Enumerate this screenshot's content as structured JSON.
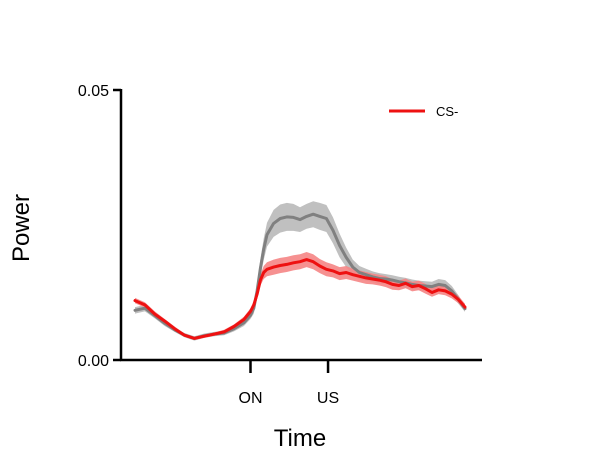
{
  "chart_data": {
    "type": "line",
    "title": "",
    "xlabel": "Time",
    "ylabel": "Power",
    "ylim": [
      0,
      0.05
    ],
    "xlim": [
      0,
      100
    ],
    "yticks": [
      {
        "value": 0.0,
        "label": "0.00"
      },
      {
        "value": 0.05,
        "label": "0.05"
      }
    ],
    "xticks": [
      {
        "value": 35,
        "label": "ON"
      },
      {
        "value": 58.5,
        "label": "US"
      }
    ],
    "grid": false,
    "legend": {
      "placement": "top-right",
      "entries": [
        "CS-"
      ]
    },
    "series": [
      {
        "name": "",
        "color": "#808080",
        "band_color": "#c0c0c0",
        "x": [
          0,
          3,
          6,
          9,
          12,
          15,
          18,
          21,
          24,
          27,
          30,
          33,
          35,
          36,
          37,
          38,
          39,
          40,
          42,
          44,
          46,
          48,
          50,
          52,
          54,
          56,
          58,
          60,
          62,
          64,
          66,
          68,
          70,
          72,
          74,
          76,
          78,
          80,
          82,
          84,
          86,
          88,
          90,
          92,
          94,
          96,
          98,
          100
        ],
        "y": [
          0.0092,
          0.0096,
          0.0082,
          0.0068,
          0.0056,
          0.0046,
          0.004,
          0.0045,
          0.0048,
          0.005,
          0.0058,
          0.0069,
          0.0083,
          0.0096,
          0.0128,
          0.017,
          0.0205,
          0.0232,
          0.0253,
          0.0262,
          0.0265,
          0.0264,
          0.026,
          0.0266,
          0.027,
          0.0266,
          0.0262,
          0.024,
          0.0212,
          0.019,
          0.0172,
          0.0162,
          0.0158,
          0.0154,
          0.0151,
          0.015,
          0.0148,
          0.0145,
          0.0143,
          0.014,
          0.0138,
          0.0137,
          0.0136,
          0.014,
          0.0138,
          0.0128,
          0.0112,
          0.0095
        ],
        "err": [
          0.0006,
          0.0006,
          0.0005,
          0.0005,
          0.0004,
          0.0004,
          0.0004,
          0.0004,
          0.0004,
          0.0004,
          0.0005,
          0.0006,
          0.0007,
          0.001,
          0.0013,
          0.0017,
          0.002,
          0.0022,
          0.0025,
          0.0026,
          0.0026,
          0.0025,
          0.0023,
          0.0023,
          0.0024,
          0.0025,
          0.0025,
          0.0024,
          0.0022,
          0.0018,
          0.0014,
          0.0012,
          0.0011,
          0.001,
          0.001,
          0.0009,
          0.0009,
          0.0009,
          0.0009,
          0.0009,
          0.0009,
          0.0009,
          0.0009,
          0.001,
          0.001,
          0.0009,
          0.0008,
          0.0006
        ]
      },
      {
        "name": "CS-",
        "color": "#ee1111",
        "band_color": "#f58585",
        "x": [
          0,
          3,
          6,
          9,
          12,
          15,
          18,
          21,
          24,
          27,
          30,
          33,
          35,
          36,
          37,
          38,
          39,
          40,
          42,
          44,
          46,
          48,
          50,
          52,
          54,
          56,
          58,
          60,
          62,
          64,
          66,
          68,
          70,
          72,
          74,
          76,
          78,
          80,
          82,
          84,
          86,
          88,
          90,
          92,
          94,
          96,
          98,
          100
        ],
        "y": [
          0.011,
          0.0102,
          0.0085,
          0.0072,
          0.0058,
          0.0046,
          0.004,
          0.0044,
          0.0048,
          0.0052,
          0.0062,
          0.0075,
          0.009,
          0.0102,
          0.0122,
          0.0148,
          0.0162,
          0.0168,
          0.0172,
          0.0175,
          0.0177,
          0.018,
          0.0182,
          0.0186,
          0.0182,
          0.0174,
          0.0168,
          0.0165,
          0.016,
          0.0162,
          0.0158,
          0.0155,
          0.0152,
          0.015,
          0.0148,
          0.0145,
          0.014,
          0.0138,
          0.0142,
          0.0136,
          0.0138,
          0.0132,
          0.0125,
          0.013,
          0.0128,
          0.0122,
          0.0112,
          0.0098
        ],
        "err": [
          0.0005,
          0.0005,
          0.0005,
          0.0004,
          0.0004,
          0.0003,
          0.0003,
          0.0003,
          0.0003,
          0.0004,
          0.0004,
          0.0005,
          0.0006,
          0.0007,
          0.0008,
          0.001,
          0.0012,
          0.0013,
          0.0014,
          0.0014,
          0.0014,
          0.0014,
          0.0014,
          0.0014,
          0.0014,
          0.0013,
          0.0013,
          0.0012,
          0.0012,
          0.0012,
          0.0011,
          0.0011,
          0.0011,
          0.001,
          0.001,
          0.001,
          0.001,
          0.0009,
          0.0009,
          0.0009,
          0.0009,
          0.0009,
          0.0008,
          0.0008,
          0.0008,
          0.0008,
          0.0007,
          0.0006
        ]
      }
    ]
  }
}
